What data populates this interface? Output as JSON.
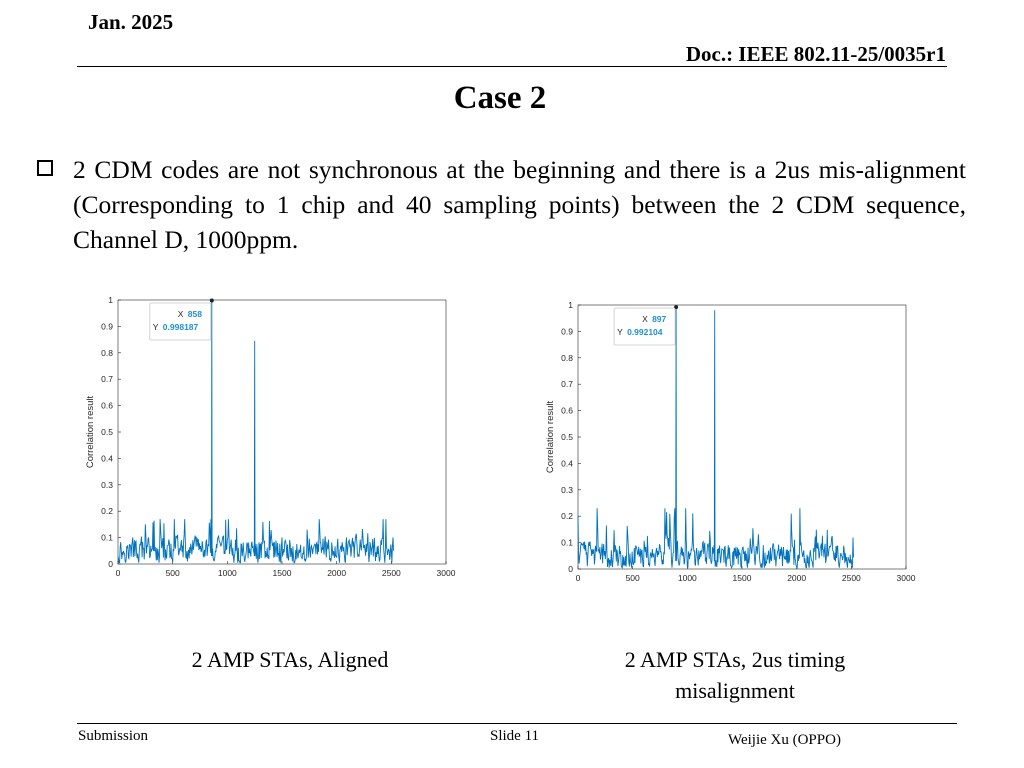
{
  "header": {
    "date": "Jan. 2025",
    "doc": "Doc.: IEEE 802.11-25/0035r1"
  },
  "slide": {
    "title": "Case 2",
    "bullet_text": "2 CDM codes are not synchronous at the beginning and there is a 2us mis-alignment (Corresponding to 1 chip and 40 sampling points) between the 2 CDM sequence, Channel D, 1000ppm."
  },
  "captions": {
    "left": "2 AMP STAs,  Aligned",
    "right_line1": "2 AMP STAs,  2us timing",
    "right_line2": "misalignment"
  },
  "footer": {
    "left": "Submission",
    "center": "Slide 11",
    "right": "Weijie Xu (OPPO)"
  },
  "colors": {
    "line": "#0072BD",
    "datatip_value": "#1f8fd6"
  },
  "chart_data": [
    {
      "type": "line",
      "ylabel": "Correlation result",
      "xlim": [
        0,
        3000
      ],
      "ylim": [
        0,
        1
      ],
      "xticks": [
        "0",
        "500",
        "1000",
        "1500",
        "2000",
        "2500",
        "3000"
      ],
      "yticks": [
        "0",
        "0.1",
        "0.2",
        "0.3",
        "0.4",
        "0.5",
        "0.6",
        "0.7",
        "0.8",
        "0.9",
        "1"
      ],
      "x_end": 2520,
      "peaks": [
        {
          "x": 858,
          "y": 0.998187
        },
        {
          "x": 1250,
          "y": 0.845
        }
      ],
      "datatip": {
        "x_label": "X",
        "x_value": "858",
        "y_label": "Y",
        "y_value": "0.998187"
      },
      "noise_baseline": 0.05,
      "noise_max": 0.17
    },
    {
      "type": "line",
      "ylabel": "Correlation result",
      "xlim": [
        0,
        3000
      ],
      "ylim": [
        0,
        1
      ],
      "xticks": [
        "0",
        "500",
        "1000",
        "1500",
        "2000",
        "2500",
        "3000"
      ],
      "yticks": [
        "0",
        "0.1",
        "0.2",
        "0.3",
        "0.4",
        "0.5",
        "0.6",
        "0.7",
        "0.8",
        "0.9",
        "1"
      ],
      "x_end": 2520,
      "peaks": [
        {
          "x": 897,
          "y": 0.992104
        },
        {
          "x": 1250,
          "y": 0.98
        }
      ],
      "datatip": {
        "x_label": "X",
        "x_value": "897",
        "y_label": "Y",
        "y_value": "0.992104"
      },
      "noise_baseline": 0.05,
      "noise_max": 0.23
    }
  ]
}
